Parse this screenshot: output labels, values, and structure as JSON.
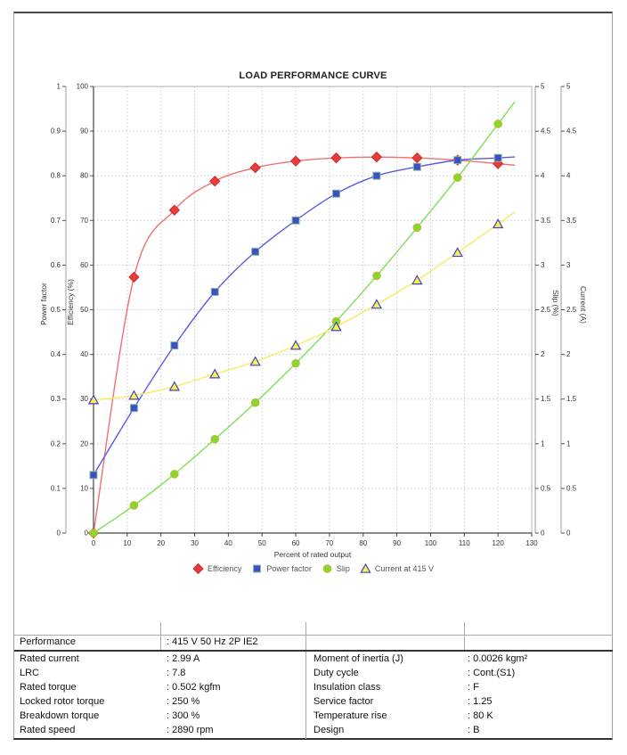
{
  "chart_data": {
    "type": "line",
    "title": "LOAD PERFORMANCE CURVE",
    "xlabel": "Percent of rated output",
    "xlim": [
      0,
      130
    ],
    "x_tick_step": 10,
    "grid": "dashed",
    "legend_position": "bottom",
    "x": [
      0,
      12,
      24,
      36,
      48,
      60,
      72,
      84,
      96,
      108,
      120
    ],
    "axes": [
      {
        "id": "power_factor",
        "label": "Power factor",
        "side": "left",
        "range": [
          0,
          1
        ],
        "tick_step": 0.1
      },
      {
        "id": "efficiency",
        "label": "Efficiency (%)",
        "side": "left",
        "range": [
          0,
          100
        ],
        "tick_step": 10
      },
      {
        "id": "slip",
        "label": "Slip (%)",
        "side": "right",
        "range": [
          0,
          5
        ],
        "tick_step": 0.5
      },
      {
        "id": "current",
        "label": "Current (A)",
        "side": "right",
        "range": [
          0,
          5
        ],
        "tick_step": 0.5
      }
    ],
    "series": [
      {
        "name": "Efficiency",
        "axis": "efficiency",
        "marker": "diamond",
        "color": "#e83c3c",
        "edge": "#c62f2f",
        "line_color": "#f07070",
        "values": [
          0,
          57.3,
          72.3,
          78.8,
          81.8,
          83.3,
          84.0,
          84.2,
          84.0,
          83.5,
          82.7
        ]
      },
      {
        "name": "Power factor",
        "axis": "power_factor",
        "marker": "square",
        "color": "#3a50c8",
        "edge": "#8fb98f",
        "line_color": "#5a5ae0",
        "values": [
          0.13,
          0.28,
          0.42,
          0.54,
          0.63,
          0.7,
          0.76,
          0.8,
          0.82,
          0.835,
          0.84
        ]
      },
      {
        "name": "Slip",
        "axis": "slip",
        "marker": "circle",
        "color": "#84d930",
        "edge": "#cbb42a",
        "line_color": "#7be055",
        "values": [
          0,
          0.31,
          0.66,
          1.05,
          1.46,
          1.9,
          2.37,
          2.88,
          3.42,
          3.98,
          4.58
        ]
      },
      {
        "name": "Current at 415 V",
        "axis": "current",
        "marker": "triangle",
        "color": "#f8f04c",
        "edge": "#4343c8",
        "line_color": "#f5ec62",
        "values": [
          1.49,
          1.54,
          1.64,
          1.78,
          1.92,
          2.1,
          2.31,
          2.56,
          2.83,
          3.14,
          3.46
        ]
      }
    ]
  },
  "table": {
    "performance": {
      "label": "Performance",
      "value": ": 415 V 50 Hz 2P IE2"
    },
    "specs_left": [
      {
        "label": "Rated current",
        "value": ": 2.99 A"
      },
      {
        "label": "LRC",
        "value": ": 7.8"
      },
      {
        "label": "Rated torque",
        "value": ": 0.502 kgfm"
      },
      {
        "label": "Locked rotor torque",
        "value": ": 250 %"
      },
      {
        "label": "Breakdown torque",
        "value": ": 300 %"
      },
      {
        "label": "Rated speed",
        "value": ": 2890 rpm"
      }
    ],
    "specs_right": [
      {
        "label": "Moment of inertia (J)",
        "value": ": 0.0026 kgm²"
      },
      {
        "label": "Duty cycle",
        "value": ": Cont.(S1)"
      },
      {
        "label": "Insulation class",
        "value": ": F"
      },
      {
        "label": "Service factor",
        "value": ": 1.25"
      },
      {
        "label": "Temperature rise",
        "value": ": 80 K"
      },
      {
        "label": "Design",
        "value": ": B"
      }
    ]
  }
}
